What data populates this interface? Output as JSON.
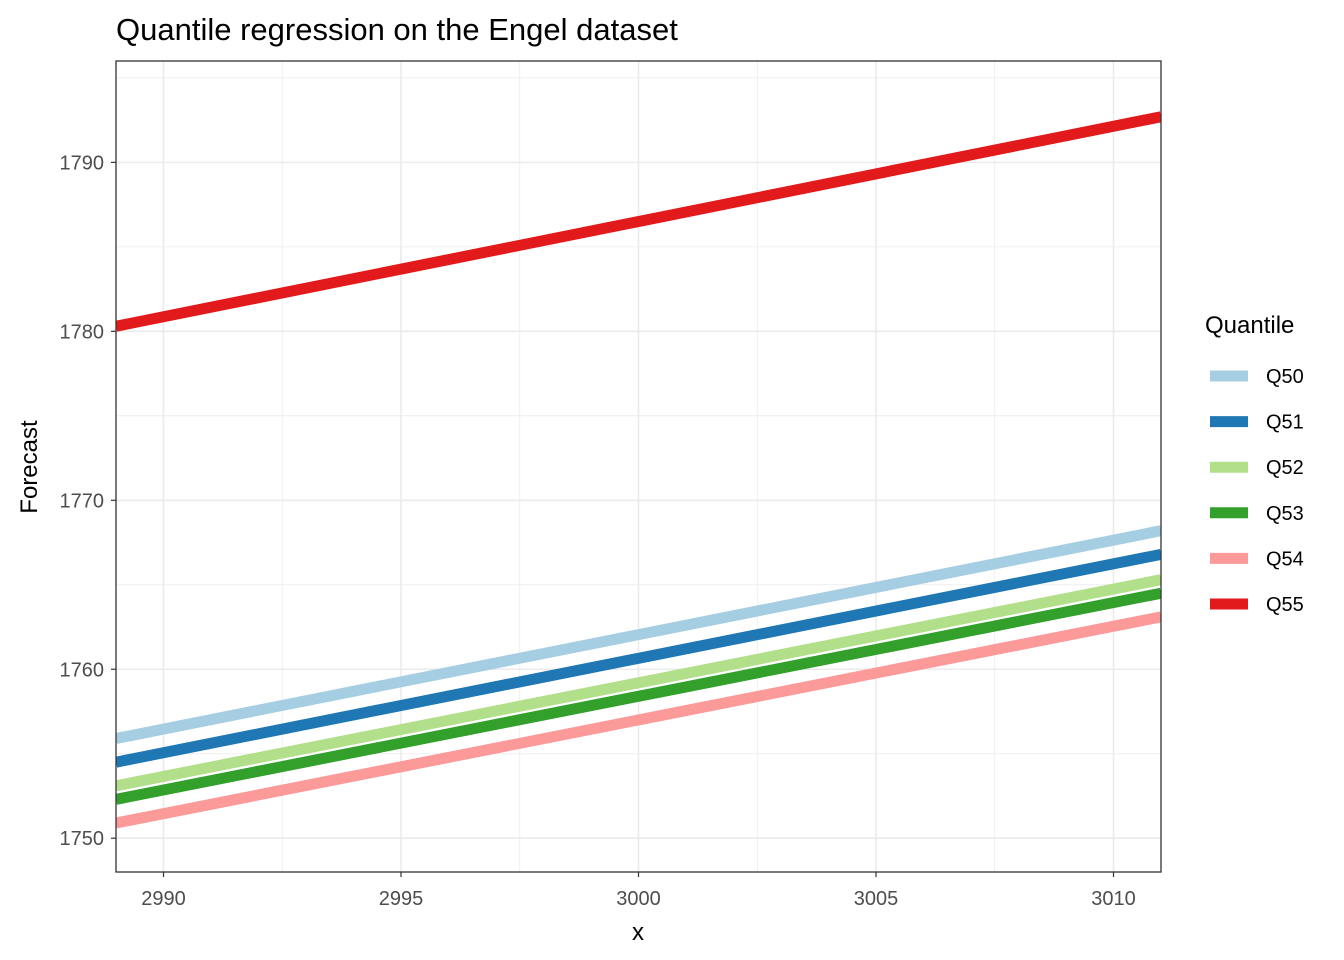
{
  "chart_data": {
    "type": "line",
    "title": "Quantile regression on the Engel dataset",
    "xlabel": "x",
    "ylabel": "Forecast",
    "xlim": [
      2989,
      3011
    ],
    "ylim": [
      1748,
      1796
    ],
    "xticks": [
      2990,
      2995,
      3000,
      3005,
      3010
    ],
    "yticks": [
      1750,
      1760,
      1770,
      1780,
      1790
    ],
    "grid": true,
    "legend": {
      "title": "Quantile",
      "position": "right"
    },
    "series": [
      {
        "name": "Q50",
        "color": "#a6cee3",
        "x": [
          2989,
          3011
        ],
        "y": [
          1755.9,
          1768.2
        ]
      },
      {
        "name": "Q51",
        "color": "#1f78b4",
        "x": [
          2989,
          3011
        ],
        "y": [
          1754.5,
          1766.8
        ]
      },
      {
        "name": "Q52",
        "color": "#b2df8a",
        "x": [
          2989,
          3011
        ],
        "y": [
          1753.1,
          1765.3
        ]
      },
      {
        "name": "Q53",
        "color": "#33a02c",
        "x": [
          2989,
          3011
        ],
        "y": [
          1752.3,
          1764.5
        ]
      },
      {
        "name": "Q54",
        "color": "#fb9a99",
        "x": [
          2989,
          3011
        ],
        "y": [
          1750.9,
          1763.1
        ]
      },
      {
        "name": "Q55",
        "color": "#e31a1c",
        "x": [
          2989,
          3011
        ],
        "y": [
          1780.3,
          1792.7
        ]
      }
    ]
  }
}
